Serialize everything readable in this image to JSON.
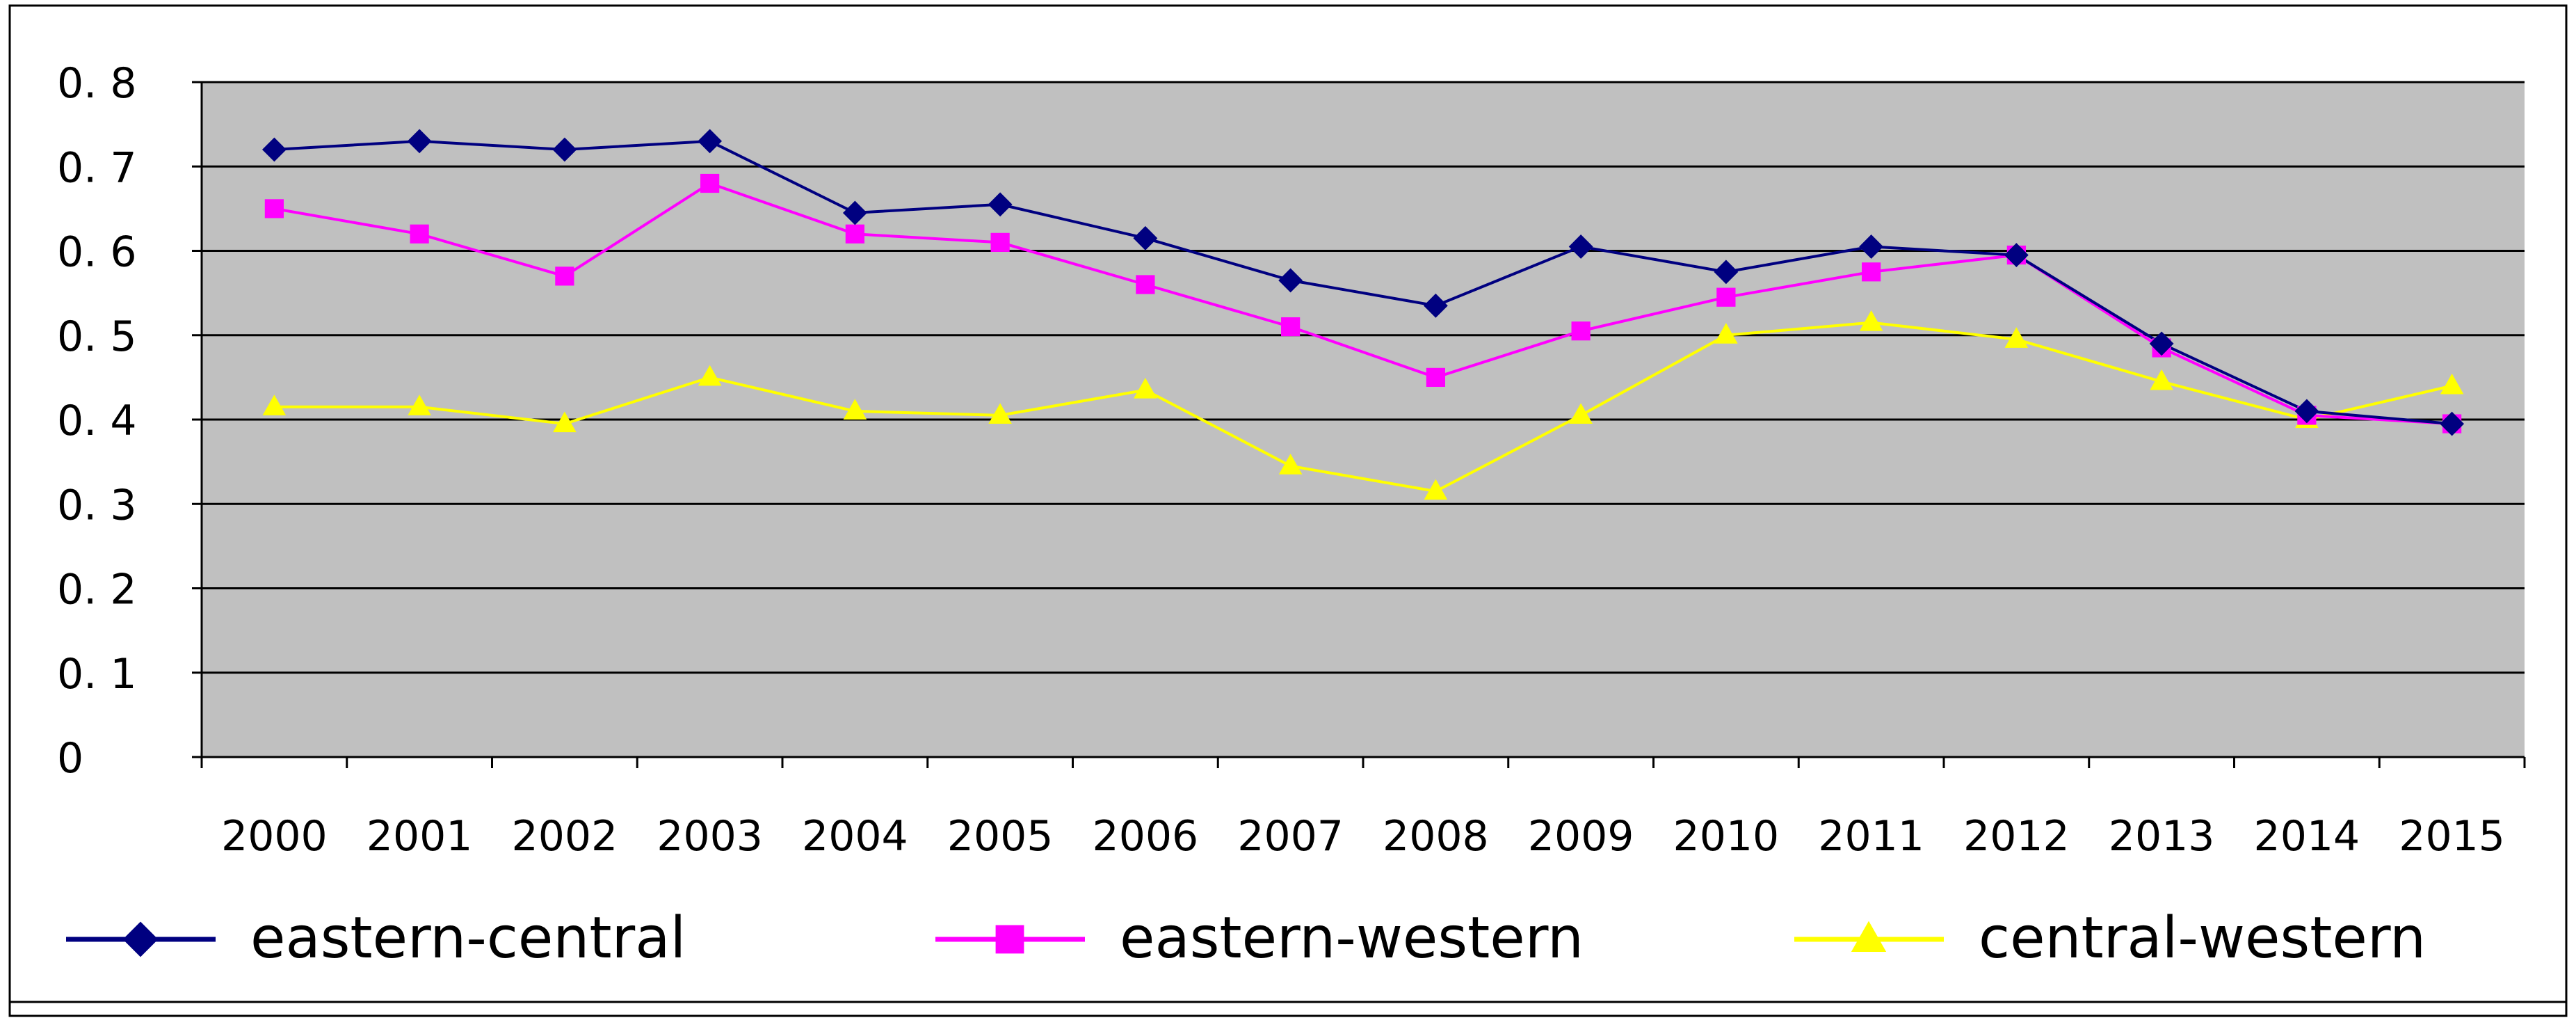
{
  "chart_data": {
    "type": "line",
    "x": [
      "2000",
      "2001",
      "2002",
      "2003",
      "2004",
      "2005",
      "2006",
      "2007",
      "2008",
      "2009",
      "2010",
      "2011",
      "2012",
      "2013",
      "2014",
      "2015"
    ],
    "ylim": [
      0,
      0.8
    ],
    "yticks": [
      "0",
      "0. 1",
      "0. 2",
      "0. 3",
      "0. 4",
      "0. 5",
      "0. 6",
      "0. 7",
      "0. 8"
    ],
    "grid": true,
    "legend_position": "bottom",
    "plot_background": "#c0c0c0",
    "series": [
      {
        "name": "eastern-central",
        "color": "#000080",
        "marker": "diamond",
        "values": [
          0.72,
          0.73,
          0.72,
          0.73,
          0.645,
          0.655,
          0.615,
          0.565,
          0.535,
          0.605,
          0.575,
          0.605,
          0.595,
          0.49,
          0.41,
          0.395
        ]
      },
      {
        "name": "eastern-western",
        "color": "#ff00ff",
        "marker": "square",
        "values": [
          0.65,
          0.62,
          0.57,
          0.68,
          0.62,
          0.61,
          0.56,
          0.51,
          0.45,
          0.505,
          0.545,
          0.575,
          0.595,
          0.485,
          0.405,
          0.395
        ]
      },
      {
        "name": "central-western",
        "color": "#ffff00",
        "marker": "triangle",
        "values": [
          0.415,
          0.415,
          0.395,
          0.45,
          0.41,
          0.405,
          0.435,
          0.345,
          0.315,
          0.405,
          0.5,
          0.515,
          0.495,
          0.445,
          0.4,
          0.44
        ]
      }
    ]
  }
}
